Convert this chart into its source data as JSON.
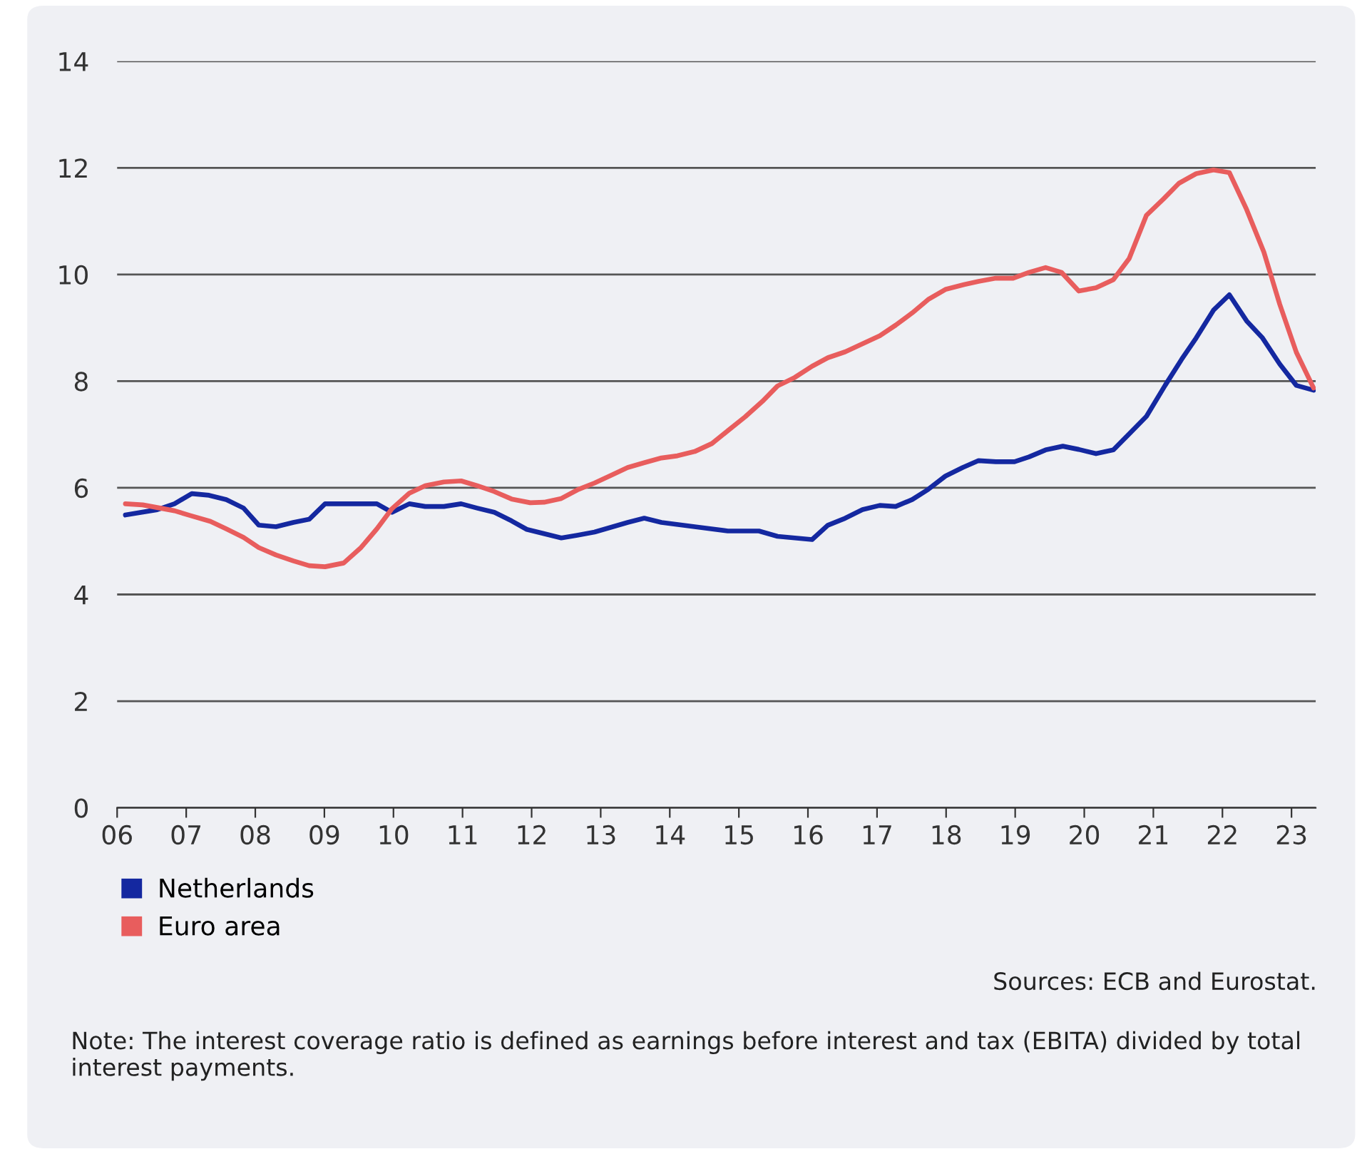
{
  "chart_data": {
    "type": "line",
    "xlim": [
      2006,
      2023.35
    ],
    "xticks": [
      {
        "value": 2006,
        "label": "06"
      },
      {
        "value": 2007,
        "label": "07"
      },
      {
        "value": 2008,
        "label": "08"
      },
      {
        "value": 2009,
        "label": "09"
      },
      {
        "value": 2010,
        "label": "10"
      },
      {
        "value": 2011,
        "label": "11"
      },
      {
        "value": 2012,
        "label": "12"
      },
      {
        "value": 2013,
        "label": "13"
      },
      {
        "value": 2014,
        "label": "14"
      },
      {
        "value": 2015,
        "label": "15"
      },
      {
        "value": 2016,
        "label": "16"
      },
      {
        "value": 2017,
        "label": "17"
      },
      {
        "value": 2018,
        "label": "18"
      },
      {
        "value": 2019,
        "label": "19"
      },
      {
        "value": 2020,
        "label": "20"
      },
      {
        "value": 2021,
        "label": "21"
      },
      {
        "value": 2022,
        "label": "22"
      },
      {
        "value": 2023,
        "label": "23"
      }
    ],
    "ylim": [
      0,
      14
    ],
    "yticks": [
      0,
      2,
      4,
      6,
      8,
      10,
      12,
      14
    ],
    "grid": "y",
    "legend": "bottom left",
    "marker": "none",
    "line_style": "solid",
    "series": [
      {
        "name": "Netherlands",
        "color": "#1428a0",
        "x": [
          2006.12,
          2006.58,
          2006.83,
          2007.08,
          2007.33,
          2007.58,
          2007.83,
          2008.05,
          2008.3,
          2008.55,
          2008.78,
          2009.01,
          2009.28,
          2009.53,
          2009.76,
          2009.98,
          2010.23,
          2010.46,
          2010.73,
          2010.98,
          2011.21,
          2011.46,
          2011.71,
          2011.93,
          2012.43,
          2012.66,
          2012.91,
          2013.39,
          2013.63,
          2013.88,
          2014.36,
          2014.84,
          2015.29,
          2015.56,
          2016.06,
          2016.29,
          2016.54,
          2016.79,
          2017.04,
          2017.27,
          2017.51,
          2017.74,
          2017.99,
          2018.24,
          2018.47,
          2018.72,
          2018.99,
          2019.2,
          2019.44,
          2019.69,
          2019.92,
          2020.17,
          2020.42,
          2020.65,
          2020.9,
          2021.17,
          2021.41,
          2021.62,
          2021.87,
          2022.1,
          2022.35,
          2022.58,
          2022.83,
          2023.07,
          2023.32
        ],
        "values": [
          5.49,
          5.59,
          5.7,
          5.89,
          5.86,
          5.78,
          5.62,
          5.3,
          5.27,
          5.35,
          5.41,
          5.7,
          5.7,
          5.7,
          5.7,
          5.54,
          5.7,
          5.65,
          5.65,
          5.7,
          5.62,
          5.54,
          5.38,
          5.22,
          5.06,
          5.11,
          5.17,
          5.35,
          5.43,
          5.35,
          5.27,
          5.19,
          5.19,
          5.09,
          5.03,
          5.3,
          5.43,
          5.59,
          5.67,
          5.65,
          5.78,
          5.97,
          6.22,
          6.38,
          6.51,
          6.49,
          6.49,
          6.58,
          6.71,
          6.78,
          6.72,
          6.64,
          6.71,
          7.01,
          7.34,
          7.92,
          8.41,
          8.81,
          9.33,
          9.62,
          9.13,
          8.81,
          8.32,
          7.92,
          7.83
        ]
      },
      {
        "name": "Euro area",
        "color": "#e85d5d",
        "x": [
          2006.12,
          2006.37,
          2006.58,
          2006.83,
          2007.06,
          2007.35,
          2007.58,
          2007.83,
          2008.05,
          2008.3,
          2008.55,
          2008.78,
          2009.01,
          2009.28,
          2009.53,
          2009.76,
          2009.98,
          2010.23,
          2010.46,
          2010.73,
          2010.98,
          2011.21,
          2011.46,
          2011.71,
          2011.98,
          2012.18,
          2012.43,
          2012.66,
          2012.91,
          2013.16,
          2013.39,
          2013.63,
          2013.88,
          2014.11,
          2014.36,
          2014.61,
          2014.84,
          2015.09,
          2015.34,
          2015.56,
          2015.81,
          2016.06,
          2016.29,
          2016.54,
          2016.79,
          2017.04,
          2017.27,
          2017.51,
          2017.74,
          2017.99,
          2018.26,
          2018.47,
          2018.72,
          2018.97,
          2019.2,
          2019.44,
          2019.67,
          2019.92,
          2020.17,
          2020.42,
          2020.65,
          2020.9,
          2021.15,
          2021.37,
          2021.62,
          2021.87,
          2022.1,
          2022.35,
          2022.6,
          2022.83,
          2023.07,
          2023.32
        ],
        "values": [
          5.7,
          5.68,
          5.63,
          5.57,
          5.48,
          5.37,
          5.23,
          5.07,
          4.88,
          4.74,
          4.63,
          4.54,
          4.52,
          4.59,
          4.88,
          5.23,
          5.61,
          5.9,
          6.04,
          6.11,
          6.13,
          6.04,
          5.93,
          5.79,
          5.72,
          5.73,
          5.8,
          5.96,
          6.09,
          6.24,
          6.38,
          6.47,
          6.56,
          6.6,
          6.68,
          6.83,
          7.07,
          7.33,
          7.62,
          7.91,
          8.07,
          8.28,
          8.44,
          8.55,
          8.7,
          8.85,
          9.05,
          9.28,
          9.53,
          9.72,
          9.81,
          9.87,
          9.93,
          9.93,
          10.04,
          10.13,
          10.04,
          9.69,
          9.75,
          9.9,
          10.3,
          11.11,
          11.42,
          11.71,
          11.89,
          11.96,
          11.91,
          11.22,
          10.42,
          9.44,
          8.54,
          7.87
        ]
      }
    ],
    "annotations": [
      "Sources: ECB and Eurostat.",
      "Note: The interest coverage ratio is defined as earnings before interest and tax (EBITA) divided by total interest payments."
    ]
  }
}
